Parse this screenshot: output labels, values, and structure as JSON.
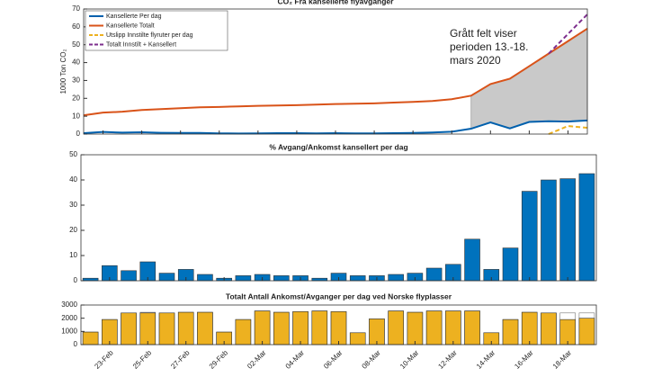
{
  "chart_data": [
    {
      "type": "line",
      "title": "CO₂ Fra kansellerte flyavganger",
      "ylabel": "1000 Ton CO₂",
      "ylim": [
        0,
        70
      ],
      "yticks": [
        0,
        10,
        20,
        30,
        40,
        50,
        60,
        70
      ],
      "legend": "upper left",
      "annotation": [
        "Grått felt viser",
        "perioden 13.-18.",
        "mars 2020"
      ],
      "shade": {
        "from": 20,
        "to": 26,
        "color": "#c9c9c9"
      },
      "series": [
        {
          "name": "Kansellerte Per dag",
          "color": "#0060ad",
          "dash": false,
          "values": [
            0.5,
            1.2,
            0.8,
            1,
            0.7,
            0.6,
            0.6,
            0.4,
            0.3,
            0.4,
            0.5,
            0.5,
            0.4,
            0.5,
            0.4,
            0.4,
            0.5,
            0.6,
            0.9,
            1.3,
            3,
            6.5,
            3.2,
            6.8,
            7.2,
            7,
            7.6
          ]
        },
        {
          "name": "Kansellerte Totalt",
          "color": "#d95319",
          "dash": false,
          "values": [
            10.5,
            12,
            12.5,
            13.5,
            14,
            14.5,
            15,
            15.2,
            15.5,
            15.8,
            16,
            16.2,
            16.5,
            16.8,
            17,
            17.2,
            17.6,
            18,
            18.5,
            19.5,
            21.5,
            28,
            31,
            38,
            45,
            52,
            59
          ]
        },
        {
          "name": "Utslipp Innstilte flyruter per dag",
          "color": "#edb120",
          "dash": true,
          "values": [
            null,
            null,
            null,
            null,
            null,
            null,
            null,
            null,
            null,
            null,
            null,
            null,
            null,
            null,
            null,
            null,
            null,
            null,
            null,
            null,
            null,
            null,
            null,
            null,
            0,
            4.5,
            3.5
          ]
        },
        {
          "name": "Totalt Innstilt + Kansellert",
          "color": "#7e2f8e",
          "dash": true,
          "values": [
            null,
            null,
            null,
            null,
            null,
            null,
            null,
            null,
            null,
            null,
            null,
            null,
            null,
            null,
            null,
            null,
            null,
            null,
            null,
            null,
            null,
            null,
            null,
            null,
            45,
            56,
            67
          ]
        }
      ]
    },
    {
      "type": "bar",
      "title": "% Avgang/Ankomst kansellert per dag",
      "ylim": [
        0,
        50
      ],
      "yticks": [
        0,
        10,
        20,
        30,
        40,
        50
      ],
      "series": [
        {
          "color": "#0072bd",
          "values": [
            1,
            6,
            4,
            7.5,
            3,
            4.5,
            2.5,
            1,
            2,
            2.5,
            2,
            2,
            1,
            3,
            2,
            2,
            2.5,
            3,
            5,
            6.5,
            16.5,
            4.5,
            13,
            35.5,
            40,
            40.5,
            42.5
          ]
        }
      ]
    },
    {
      "type": "bar",
      "title": "Totalt Antall Ankomst/Avganger per dag ved Norske flyplasser",
      "ylim": [
        0,
        3000
      ],
      "yticks": [
        0,
        1000,
        2000,
        3000
      ],
      "categories": [
        null,
        "23-Feb",
        null,
        "25-Feb",
        null,
        "27-Feb",
        null,
        "29-Feb",
        null,
        "02-Mar",
        null,
        "04-Mar",
        null,
        "06-Mar",
        null,
        "08-Mar",
        null,
        "10-Mar",
        null,
        "12-Mar",
        null,
        "14-Mar",
        null,
        "16-Mar",
        null,
        "18-Mar",
        null
      ],
      "series": [
        {
          "color": "#ffffff",
          "values": [
            950,
            1900,
            2400,
            2450,
            2400,
            2450,
            2450,
            950,
            1900,
            2550,
            2450,
            2500,
            2550,
            2500,
            900,
            1950,
            2550,
            2450,
            2550,
            2550,
            2550,
            900,
            1900,
            2450,
            2400,
            2400,
            2400
          ]
        },
        {
          "color": "#edb120",
          "values": [
            950,
            1900,
            2400,
            2400,
            2400,
            2450,
            2450,
            950,
            1900,
            2550,
            2450,
            2500,
            2550,
            2500,
            900,
            1950,
            2550,
            2450,
            2550,
            2550,
            2550,
            900,
            1900,
            2450,
            2400,
            1900,
            2000
          ]
        }
      ]
    }
  ]
}
